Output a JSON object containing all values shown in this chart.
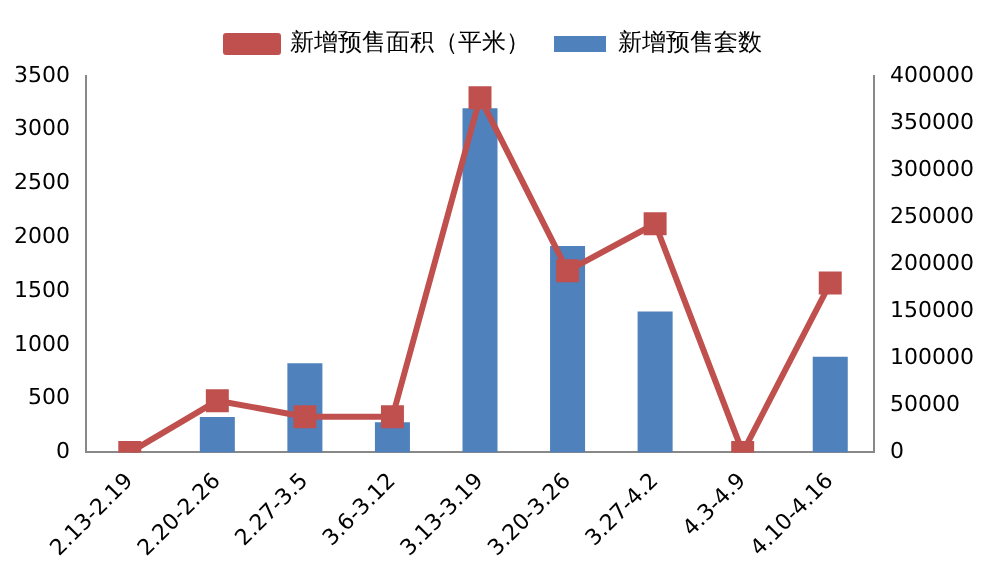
{
  "chart_data": {
    "type": "bar",
    "categories": [
      "2.13-2.19",
      "2.20-2.26",
      "2.27-3.5",
      "3.6-3.12",
      "3.13-3.19",
      "3.20-3.26",
      "3.27-4.2",
      "4.3-4.9",
      "4.10-4.16"
    ],
    "series": [
      {
        "name": "新增预售套数",
        "color": "#4f81bd",
        "values": [
          0,
          330,
          830,
          280,
          3200,
          1920,
          1310,
          0,
          890
        ]
      },
      {
        "name": "新增预售面积（平米）",
        "type": "line",
        "axis": "y2",
        "color": "#c0504d",
        "values": [
          0,
          55000,
          38000,
          38000,
          377000,
          193000,
          243000,
          0,
          180000
        ]
      }
    ],
    "ylim": [
      0,
      3500
    ],
    "yticks": [
      0,
      500,
      1000,
      1500,
      2000,
      2500,
      3000,
      3500
    ],
    "y2lim": [
      0,
      400000
    ],
    "y2ticks": [
      0,
      50000,
      100000,
      150000,
      200000,
      250000,
      300000,
      350000,
      400000
    ],
    "grid": false,
    "legend": "top",
    "marker": "square"
  }
}
